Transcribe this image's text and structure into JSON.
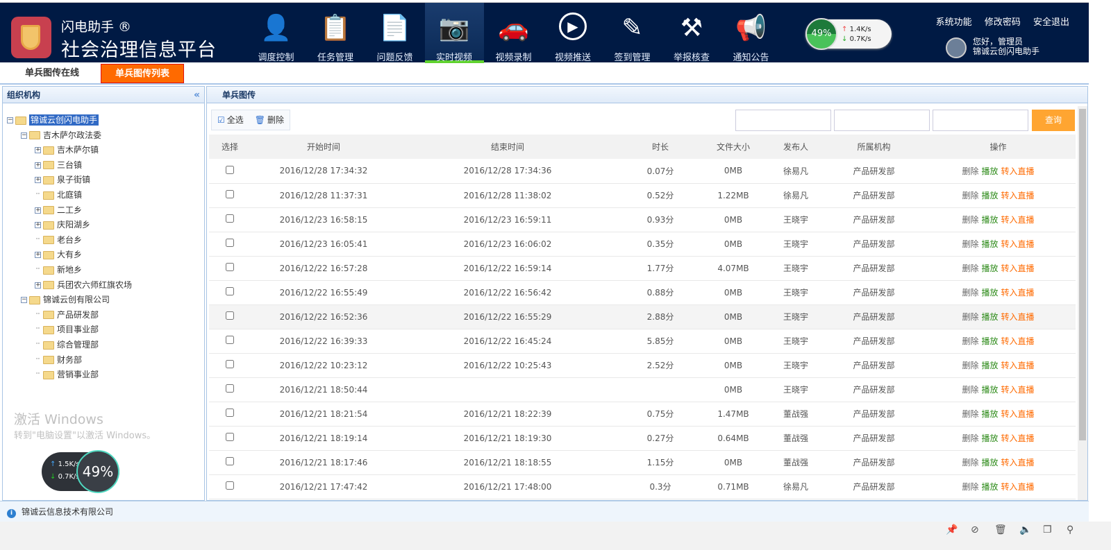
{
  "header": {
    "brand_top": "闪电助手 ®",
    "brand_main": "社会治理信息平台",
    "nav": [
      {
        "label": "调度控制",
        "icon": "person-icon"
      },
      {
        "label": "任务管理",
        "icon": "clipboard-icon"
      },
      {
        "label": "问题反馈",
        "icon": "document-check-icon"
      },
      {
        "label": "实时视频",
        "icon": "camera-icon",
        "active": true
      },
      {
        "label": "视频录制",
        "icon": "car-icon"
      },
      {
        "label": "视频推送",
        "icon": "play-icon"
      },
      {
        "label": "签到管理",
        "icon": "edit-icon"
      },
      {
        "label": "举报核查",
        "icon": "gavel-icon"
      },
      {
        "label": "通知公告",
        "icon": "megaphone-icon"
      }
    ],
    "links": [
      "系统功能",
      "修改密码",
      "安全退出"
    ],
    "greeting": "您好，管理员",
    "org": "锦诚云创闪电助手"
  },
  "tabs": [
    "单兵图传在线",
    "单兵图传列表"
  ],
  "left": {
    "title": "组织机构",
    "tree": [
      {
        "label": "锦诚云创闪电助手",
        "level": 0,
        "toggle": "-",
        "selected": true
      },
      {
        "label": "吉木萨尔政法委",
        "level": 1,
        "toggle": "-"
      },
      {
        "label": "吉木萨尔镇",
        "level": 2,
        "toggle": "+"
      },
      {
        "label": "三台镇",
        "level": 2,
        "toggle": "+"
      },
      {
        "label": "泉子街镇",
        "level": 2,
        "toggle": "+"
      },
      {
        "label": "北庭镇",
        "level": 2,
        "toggle": ""
      },
      {
        "label": "二工乡",
        "level": 2,
        "toggle": "+"
      },
      {
        "label": "庆阳湖乡",
        "level": 2,
        "toggle": "+"
      },
      {
        "label": "老台乡",
        "level": 2,
        "toggle": ""
      },
      {
        "label": "大有乡",
        "level": 2,
        "toggle": "+"
      },
      {
        "label": "新地乡",
        "level": 2,
        "toggle": ""
      },
      {
        "label": "兵团农六师红旗农场",
        "level": 2,
        "toggle": "+"
      },
      {
        "label": "锦诚云创有限公司",
        "level": 1,
        "toggle": "-"
      },
      {
        "label": "产品研发部",
        "level": 2,
        "toggle": ""
      },
      {
        "label": "项目事业部",
        "level": 2,
        "toggle": ""
      },
      {
        "label": "综合管理部",
        "level": 2,
        "toggle": ""
      },
      {
        "label": "财务部",
        "level": 2,
        "toggle": ""
      },
      {
        "label": "营销事业部",
        "level": 2,
        "toggle": ""
      }
    ]
  },
  "main": {
    "title": "单兵图传",
    "select_all": "全选",
    "delete": "删除",
    "query": "查询",
    "columns": [
      "选择",
      "开始时间",
      "结束时间",
      "时长",
      "文件大小",
      "发布人",
      "所属机构",
      "操作"
    ],
    "actions": {
      "delete": "删除",
      "play": "播放",
      "live": "转入直播"
    },
    "rows": [
      [
        "2016/12/28 17:34:32",
        "2016/12/28 17:34:36",
        "0.07分",
        "0MB",
        "徐易凡",
        "产品研发部"
      ],
      [
        "2016/12/28 11:37:31",
        "2016/12/28 11:38:02",
        "0.52分",
        "1.22MB",
        "徐易凡",
        "产品研发部"
      ],
      [
        "2016/12/23 16:58:15",
        "2016/12/23 16:59:11",
        "0.93分",
        "0MB",
        "王晓宇",
        "产品研发部"
      ],
      [
        "2016/12/23 16:05:41",
        "2016/12/23 16:06:02",
        "0.35分",
        "0MB",
        "王晓宇",
        "产品研发部"
      ],
      [
        "2016/12/22 16:57:28",
        "2016/12/22 16:59:14",
        "1.77分",
        "4.07MB",
        "王晓宇",
        "产品研发部"
      ],
      [
        "2016/12/22 16:55:49",
        "2016/12/22 16:56:42",
        "0.88分",
        "0MB",
        "王晓宇",
        "产品研发部"
      ],
      [
        "2016/12/22 16:52:36",
        "2016/12/22 16:55:29",
        "2.88分",
        "0MB",
        "王晓宇",
        "产品研发部"
      ],
      [
        "2016/12/22 16:39:33",
        "2016/12/22 16:45:24",
        "5.85分",
        "0MB",
        "王晓宇",
        "产品研发部"
      ],
      [
        "2016/12/22 10:23:12",
        "2016/12/22 10:25:43",
        "2.52分",
        "0MB",
        "王晓宇",
        "产品研发部"
      ],
      [
        "2016/12/21 18:50:44",
        "",
        "",
        "0MB",
        "王晓宇",
        "产品研发部"
      ],
      [
        "2016/12/21 18:21:54",
        "2016/12/21 18:22:39",
        "0.75分",
        "1.47MB",
        "董战强",
        "产品研发部"
      ],
      [
        "2016/12/21 18:19:14",
        "2016/12/21 18:19:30",
        "0.27分",
        "0.64MB",
        "董战强",
        "产品研发部"
      ],
      [
        "2016/12/21 18:17:46",
        "2016/12/21 18:18:55",
        "1.15分",
        "0MB",
        "董战强",
        "产品研发部"
      ],
      [
        "2016/12/21 17:47:42",
        "2016/12/21 17:48:00",
        "0.3分",
        "0.71MB",
        "徐易凡",
        "产品研发部"
      ]
    ]
  },
  "footer": {
    "company": "锦诚云信息技术有限公司"
  },
  "overlay": {
    "speed_widget": {
      "percent": "49%",
      "up": "1.4K/s",
      "down": "0.7K/s"
    },
    "speed_widget2": {
      "percent": "49%",
      "up": "1.5K/s",
      "down": "0.7K/s"
    },
    "watermark1": "激活 Windows",
    "watermark2": "转到\"电脑设置\"以激活 Windows。"
  }
}
